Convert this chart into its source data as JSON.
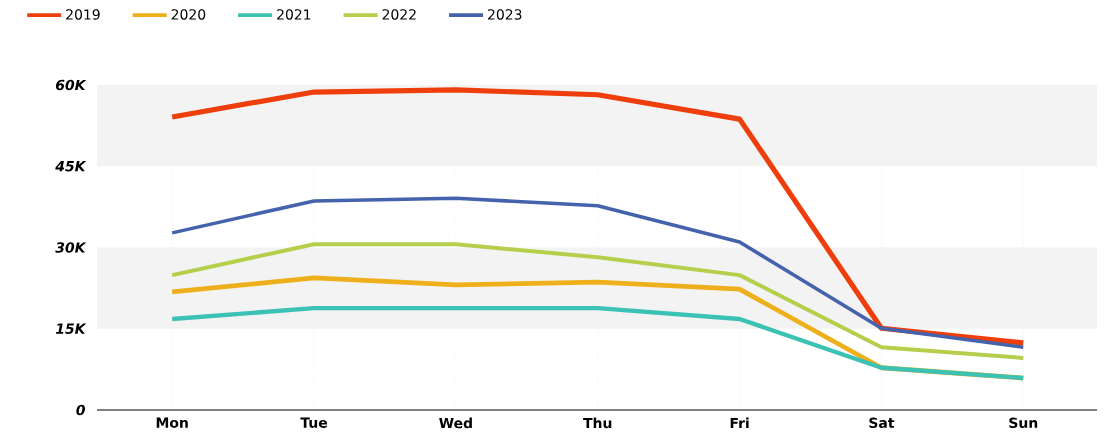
{
  "chart_data": {
    "type": "line",
    "categories": [
      "Mon",
      "Tue",
      "Wed",
      "Thu",
      "Fri",
      "Sat",
      "Sun"
    ],
    "series": [
      {
        "name": "2019",
        "color": "#ee3e0c",
        "values": [
          54100,
          58700,
          59100,
          58200,
          53700,
          15100,
          12400
        ]
      },
      {
        "name": "2020",
        "color": "#eeaf1c",
        "values": [
          21800,
          24400,
          23100,
          23600,
          22300,
          7800,
          5900
        ]
      },
      {
        "name": "2021",
        "color": "#3cc2b4",
        "values": [
          16800,
          18800,
          18800,
          18800,
          16800,
          7800,
          5900
        ]
      },
      {
        "name": "2022",
        "color": "#b5cf4c",
        "values": [
          24900,
          30600,
          30600,
          28200,
          24900,
          11600,
          9600
        ]
      },
      {
        "name": "2023",
        "color": "#4463ac",
        "values": [
          32700,
          38600,
          39100,
          37700,
          31000,
          15100,
          11600
        ]
      }
    ],
    "ylim": [
      0,
      60000
    ],
    "yticks": [
      {
        "value": 0,
        "label": "0"
      },
      {
        "value": 15000,
        "label": "15K"
      },
      {
        "value": 30000,
        "label": "30K"
      },
      {
        "value": 45000,
        "label": "45K"
      },
      {
        "value": 60000,
        "label": "60K"
      }
    ],
    "grid": true,
    "legend": "top left",
    "marker": "none",
    "line_style": "solid"
  }
}
